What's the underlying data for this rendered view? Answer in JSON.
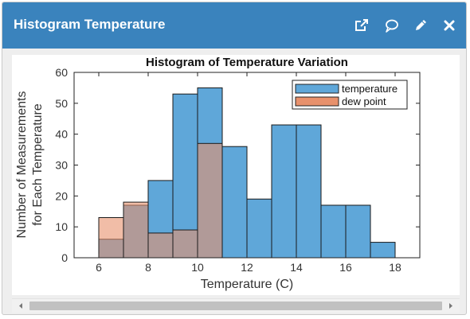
{
  "header": {
    "title": "Histogram Temperature",
    "color": "#3a83bd"
  },
  "toolbar": {
    "icons": [
      "external-link-icon",
      "comment-icon",
      "pencil-icon",
      "close-icon"
    ]
  },
  "chart_data": {
    "type": "bar",
    "title": "Histogram of Temperature Variation",
    "xlabel": "Temperature (C)",
    "ylabel": [
      "Number of Measurements",
      "for Each Temperature"
    ],
    "xlim": [
      5,
      19
    ],
    "ylim": [
      0,
      60
    ],
    "xticks": [
      6,
      8,
      10,
      12,
      14,
      16,
      18
    ],
    "yticks": [
      0,
      10,
      20,
      30,
      40,
      50,
      60
    ],
    "bin_width": 1,
    "grid": false,
    "legend_position": "top-right",
    "series": [
      {
        "name": "temperature",
        "color": "#5fa7d9",
        "bins": [
          {
            "x0": 6,
            "value": 6
          },
          {
            "x0": 7,
            "value": 17
          },
          {
            "x0": 8,
            "value": 25
          },
          {
            "x0": 9,
            "value": 53
          },
          {
            "x0": 10,
            "value": 55
          },
          {
            "x0": 11,
            "value": 36
          },
          {
            "x0": 12,
            "value": 19
          },
          {
            "x0": 13,
            "value": 43
          },
          {
            "x0": 14,
            "value": 43
          },
          {
            "x0": 15,
            "value": 17
          },
          {
            "x0": 16,
            "value": 17
          },
          {
            "x0": 17,
            "value": 5
          }
        ]
      },
      {
        "name": "dew point",
        "color": "#e8916c",
        "bins": [
          {
            "x0": 6,
            "value": 13
          },
          {
            "x0": 7,
            "value": 18
          },
          {
            "x0": 8,
            "value": 8
          },
          {
            "x0": 9,
            "value": 9
          },
          {
            "x0": 10,
            "value": 37
          }
        ]
      }
    ]
  }
}
